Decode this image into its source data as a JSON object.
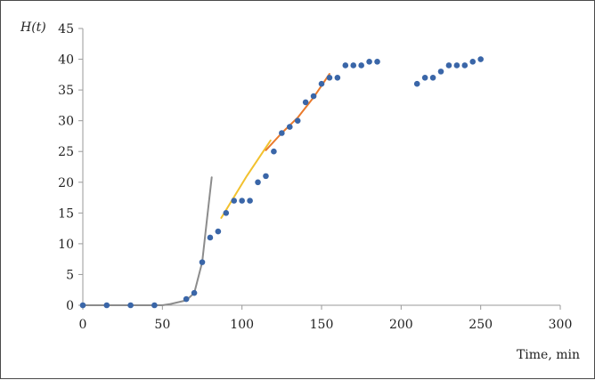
{
  "chart_data": {
    "type": "scatter",
    "ylabel": "H(t)",
    "xlabel": "Time, min",
    "xlim": [
      0,
      300
    ],
    "ylim": [
      0,
      45
    ],
    "x_ticks": [
      0,
      50,
      100,
      150,
      200,
      250,
      300
    ],
    "y_ticks": [
      0,
      5,
      10,
      15,
      20,
      25,
      30,
      35,
      40,
      45
    ],
    "grid": false,
    "legend": "none",
    "colors": {
      "points": "#3a66a8",
      "gray_fit": "#8c8c8c",
      "yellow_fit": "#f2c12e",
      "orange_fit": "#ea7a2c",
      "axis": "#9a9a9a"
    },
    "points": [
      {
        "x": 0,
        "y": 0
      },
      {
        "x": 15,
        "y": 0
      },
      {
        "x": 30,
        "y": 0
      },
      {
        "x": 45,
        "y": 0
      },
      {
        "x": 65,
        "y": 1
      },
      {
        "x": 70,
        "y": 2
      },
      {
        "x": 75,
        "y": 7
      },
      {
        "x": 80,
        "y": 11
      },
      {
        "x": 85,
        "y": 12
      },
      {
        "x": 90,
        "y": 15
      },
      {
        "x": 95,
        "y": 17
      },
      {
        "x": 100,
        "y": 17
      },
      {
        "x": 105,
        "y": 17
      },
      {
        "x": 110,
        "y": 20
      },
      {
        "x": 115,
        "y": 21
      },
      {
        "x": 120,
        "y": 25
      },
      {
        "x": 125,
        "y": 28
      },
      {
        "x": 130,
        "y": 29
      },
      {
        "x": 135,
        "y": 30
      },
      {
        "x": 140,
        "y": 33
      },
      {
        "x": 145,
        "y": 34
      },
      {
        "x": 150,
        "y": 36
      },
      {
        "x": 155,
        "y": 37
      },
      {
        "x": 160,
        "y": 37
      },
      {
        "x": 165,
        "y": 39
      },
      {
        "x": 170,
        "y": 39
      },
      {
        "x": 175,
        "y": 39
      },
      {
        "x": 180,
        "y": 39.6
      },
      {
        "x": 185,
        "y": 39.6
      },
      {
        "x": 210,
        "y": 36
      },
      {
        "x": 215,
        "y": 37
      },
      {
        "x": 220,
        "y": 37
      },
      {
        "x": 225,
        "y": 38
      },
      {
        "x": 230,
        "y": 39
      },
      {
        "x": 235,
        "y": 39
      },
      {
        "x": 240,
        "y": 39
      },
      {
        "x": 245,
        "y": 39.6
      },
      {
        "x": 250,
        "y": 40
      }
    ],
    "lines": [
      {
        "color_key": "gray_fit",
        "points": [
          [
            0,
            0
          ],
          [
            50,
            0
          ],
          [
            55,
            0.2
          ],
          [
            65,
            0.8
          ],
          [
            70,
            2
          ],
          [
            75,
            7
          ],
          [
            78,
            14
          ],
          [
            81,
            20.8
          ]
        ]
      },
      {
        "color_key": "yellow_fit",
        "points": [
          [
            87,
            14.2
          ],
          [
            103,
            21
          ],
          [
            118,
            26.8
          ]
        ]
      },
      {
        "color_key": "orange_fit",
        "points": [
          [
            115,
            25.2
          ],
          [
            125,
            28
          ],
          [
            135,
            30.5
          ],
          [
            145,
            33.8
          ],
          [
            155,
            37.6
          ]
        ]
      }
    ]
  }
}
